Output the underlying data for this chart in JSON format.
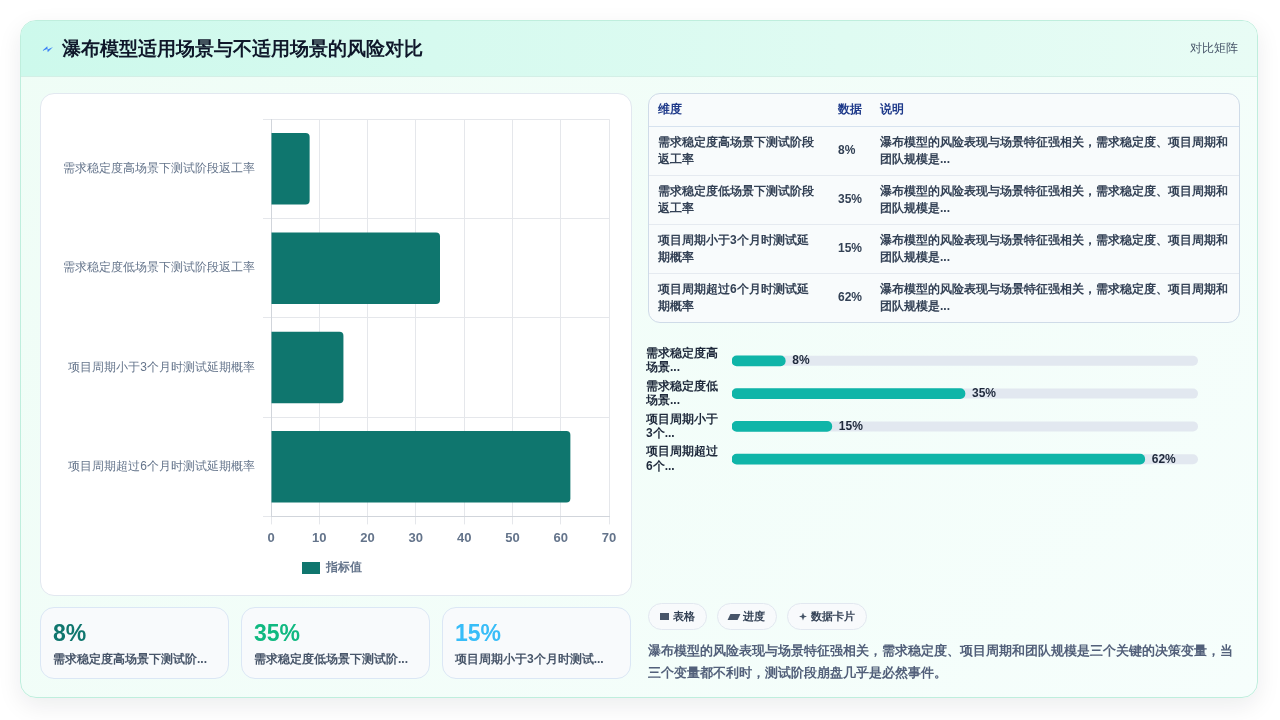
{
  "chart_data": [
    {
      "type": "other",
      "title": "瀑布模型适用场景与不适用场景的风险对比",
      "annotations": [
        "对比矩阵"
      ]
    },
    {
      "type": "bar",
      "orientation": "horizontal",
      "categories": [
        "需求稳定度高场景下测试阶段返工率",
        "需求稳定度低场景下测试阶段返工率",
        "项目周期小于3个月时测试延期概率",
        "项目周期超过6个月时测试延期概率"
      ],
      "series": [
        {
          "name": "指标值",
          "color": "#0f766e",
          "values": [
            8,
            35,
            15,
            62
          ]
        }
      ],
      "xlim": [
        0,
        70
      ],
      "xticks": [
        0,
        10,
        20,
        30,
        40,
        50,
        60,
        70
      ],
      "grid": true,
      "legend": "bottom"
    },
    {
      "type": "other",
      "categories": [
        "维度",
        "数据",
        "说明"
      ],
      "annotations": [
        "需求稳定度高场景下测试阶段返工率",
        "8%",
        "瀑布模型的风险表现与场景特征强相关，需求稳定度、项目周期和团队规模是...",
        "需求稳定度低场景下测试阶段返工率",
        "35%",
        "瀑布模型的风险表现与场景特征强相关，需求稳定度、项目周期和团队规模是...",
        "项目周期小于3个月时测试延期概率",
        "15%",
        "瀑布模型的风险表现与场景特征强相关，需求稳定度、项目周期和团队规模是...",
        "项目周期超过6个月时测试延期概率",
        "62%",
        "瀑布模型的风险表现与场景特征强相关，需求稳定度、项目周期和团队规模是..."
      ]
    },
    {
      "type": "bar",
      "orientation": "horizontal",
      "categories": [
        "需求稳定度高场景...",
        "需求稳定度低场景...",
        "项目周期小于3个...",
        "项目周期超过6个..."
      ],
      "series": [
        {
          "color": "#0fb5a8",
          "values": [
            8,
            35,
            15,
            62
          ],
          "value_labels": [
            "8%",
            "35%",
            "15%",
            "62%"
          ]
        }
      ],
      "tick_labels": "y"
    },
    {
      "type": "other",
      "categories": [
        "需求稳定度高场景下测试阶...",
        "需求稳定度低场景下测试阶...",
        "项目周期小于3个月时测试..."
      ],
      "value_labels": [
        "8%",
        "35%",
        "15%"
      ]
    },
    {
      "type": "other",
      "categories": [
        "表格",
        "进度",
        "数据卡片"
      ],
      "annotations": [
        "瀑布模型的风险表现与场景特征强相关，需求稳定度、项目周期和团队规模是三个关键的决策变量，当三个变量都不利时，测试阶段崩盘几乎是必然事件。"
      ]
    }
  ]
}
